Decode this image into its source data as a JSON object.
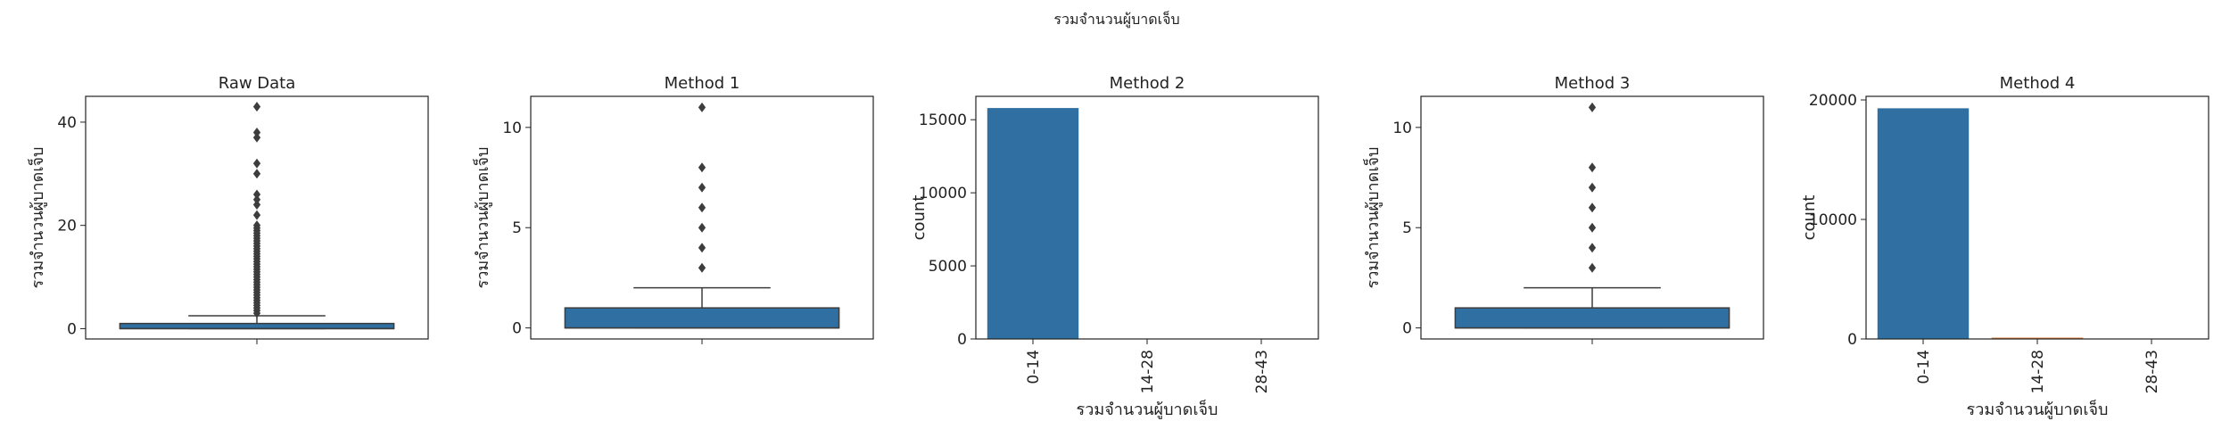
{
  "figure": {
    "suptitle": "รวมจำนวนผู้บาดเจ็บ"
  },
  "chart_data": [
    {
      "type": "box",
      "title": "Raw Data",
      "xlabel": "",
      "ylabel": "รวมจำนวนผู้บาดเจ็บ",
      "ylim": [
        -2,
        45
      ],
      "yticks": [
        0,
        20,
        40
      ],
      "box": {
        "q1": 0,
        "median": 0,
        "q3": 1,
        "whisker_low": 0,
        "whisker_high": 2.5
      },
      "outliers": [
        3,
        3.5,
        4,
        4.5,
        5,
        5.5,
        6,
        6.5,
        7,
        7.5,
        8,
        8.5,
        9,
        9.5,
        10,
        10.5,
        11,
        11.5,
        12,
        12.5,
        13,
        13.5,
        14,
        14.5,
        15,
        15.5,
        16,
        16.5,
        17,
        17.5,
        18,
        18.5,
        19,
        19.5,
        20,
        22,
        24,
        25,
        26,
        30,
        32,
        37,
        38,
        43
      ],
      "color": "#2f6fa1"
    },
    {
      "type": "box",
      "title": "Method 1",
      "xlabel": "",
      "ylabel": "รวมจำนวนผู้บาดเจ็บ",
      "ylim": [
        -0.55,
        11.55
      ],
      "yticks": [
        0,
        5,
        10
      ],
      "box": {
        "q1": 0,
        "median": 0,
        "q3": 1,
        "whisker_low": 0,
        "whisker_high": 2
      },
      "outliers": [
        3,
        4,
        5,
        6,
        7,
        8,
        11
      ],
      "color": "#2f6fa1"
    },
    {
      "type": "bar",
      "title": "Method 2",
      "xlabel": "รวมจำนวนผู้บาดเจ็บ",
      "ylabel": "count",
      "ylim": [
        0,
        16600
      ],
      "yticks": [
        0,
        5000,
        10000,
        15000
      ],
      "categories": [
        "0-14",
        "14-28",
        "28-43"
      ],
      "values": [
        15800,
        0,
        0
      ],
      "colors": [
        "#2f6fa1",
        "#2f6fa1",
        "#2f6fa1"
      ]
    },
    {
      "type": "box",
      "title": "Method 3",
      "xlabel": "",
      "ylabel": "รวมจำนวนผู้บาดเจ็บ",
      "ylim": [
        -0.55,
        11.55
      ],
      "yticks": [
        0,
        5,
        10
      ],
      "box": {
        "q1": 0,
        "median": 0,
        "q3": 1,
        "whisker_low": 0,
        "whisker_high": 2
      },
      "outliers": [
        3,
        4,
        5,
        6,
        7,
        8,
        11
      ],
      "color": "#2f6fa1"
    },
    {
      "type": "bar",
      "title": "Method 4",
      "xlabel": "รวมจำนวนผู้บาดเจ็บ",
      "ylabel": "count",
      "ylim": [
        0,
        20300
      ],
      "yticks": [
        0,
        10000,
        20000
      ],
      "categories": [
        "0-14",
        "14-28",
        "28-43"
      ],
      "values": [
        19300,
        110,
        10
      ],
      "colors": [
        "#2f6fa1",
        "#de7b35",
        "#3a923a"
      ]
    }
  ]
}
